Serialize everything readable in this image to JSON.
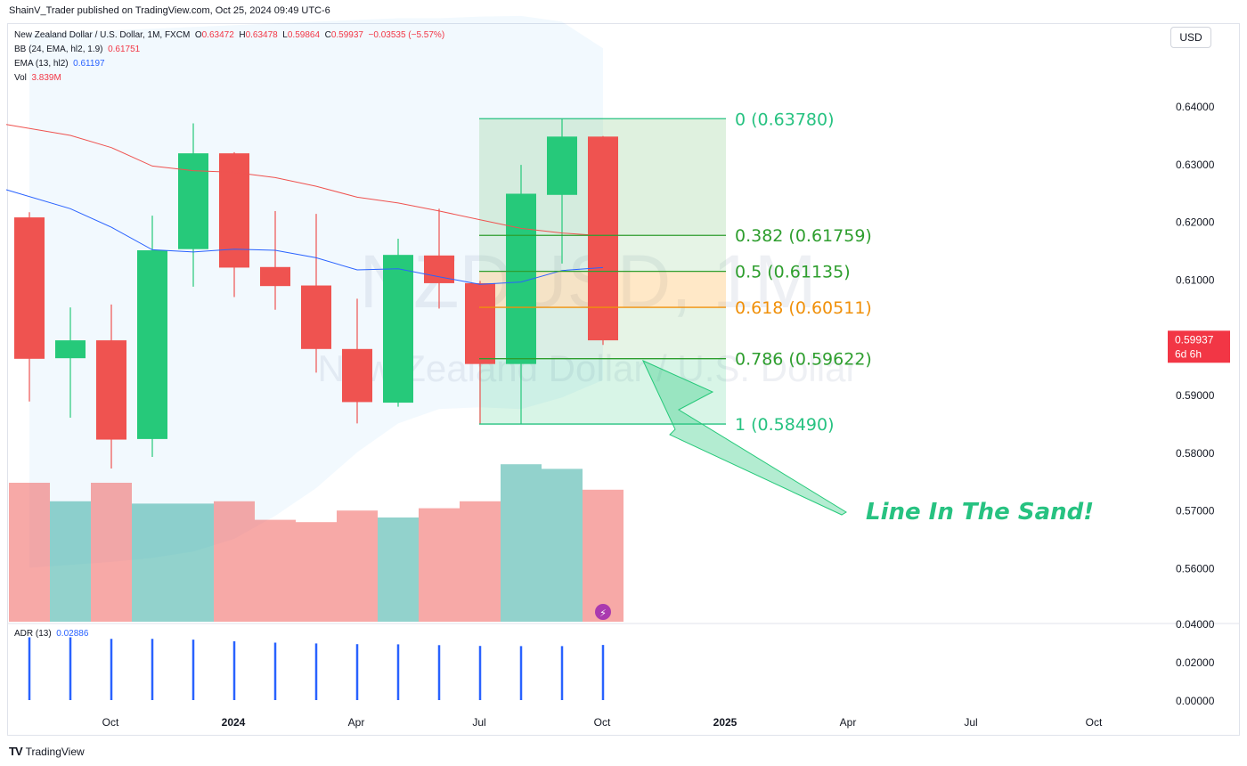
{
  "header": {
    "publish_line": "ShainV_Trader published on TradingView.com, Oct 25, 2024 09:49 UTC-6"
  },
  "legend": {
    "symbol": "New Zealand Dollar / U.S. Dollar, 1M, FXCM",
    "o_label": "O",
    "o": "0.63472",
    "h_label": "H",
    "h": "0.63478",
    "l_label": "L",
    "l": "0.59864",
    "c_label": "C",
    "c": "0.59937",
    "change": "−0.03535 (−5.57%)",
    "bb_name": "BB (24, EMA, hl2, 1.9)",
    "bb_value": "0.61751",
    "ema_name": "EMA (13, hl2)",
    "ema_value": "0.61197",
    "vol_name": "Vol",
    "vol_value": "3.839M"
  },
  "currency": "USD",
  "watermark": {
    "symbol": "NZDUSD, 1M",
    "name": "New Zealand Dollar / U.S. Dollar"
  },
  "annotation": "Line In The Sand!",
  "price_tag": {
    "price": "0.59937",
    "countdown": "6d 6h"
  },
  "adr": {
    "name": "ADR (13)",
    "value": "0.02886"
  },
  "footer": {
    "brand": "TradingView"
  },
  "colors": {
    "up": "#26c97a",
    "down": "#ef5350",
    "bb": "#ef5350",
    "ema": "#2962ff",
    "fib_green": "#2e9e2e",
    "fib_orange": "#f0900a",
    "annotation": "#27c281"
  },
  "chart_data": {
    "type": "candlestick",
    "x_ticks": [
      "Oct",
      "2024",
      "Apr",
      "Jul",
      "Oct",
      "2025",
      "Apr",
      "Jul",
      "Oct"
    ],
    "y_ticks": [
      "0.64000",
      "0.63000",
      "0.62000",
      "0.61000",
      "0.60000",
      "0.59000",
      "0.58000",
      "0.57000",
      "0.56000"
    ],
    "adr_ticks": [
      "0.04000",
      "0.02000",
      "0.00000"
    ],
    "candles": [
      {
        "o": 0.6207,
        "h": 0.6216,
        "l": 0.5888,
        "c": 0.5962
      },
      {
        "o": 0.5963,
        "h": 0.6051,
        "l": 0.586,
        "c": 0.5994
      },
      {
        "o": 0.5994,
        "h": 0.6056,
        "l": 0.5772,
        "c": 0.5822
      },
      {
        "o": 0.5823,
        "h": 0.621,
        "l": 0.5792,
        "c": 0.615
      },
      {
        "o": 0.6152,
        "h": 0.637,
        "l": 0.6087,
        "c": 0.6318
      },
      {
        "o": 0.6318,
        "h": 0.632,
        "l": 0.6069,
        "c": 0.612
      },
      {
        "o": 0.6121,
        "h": 0.6218,
        "l": 0.6047,
        "c": 0.6088
      },
      {
        "o": 0.6089,
        "h": 0.6213,
        "l": 0.5938,
        "c": 0.5979
      },
      {
        "o": 0.5979,
        "h": 0.6066,
        "l": 0.585,
        "c": 0.5887
      },
      {
        "o": 0.5886,
        "h": 0.617,
        "l": 0.5879,
        "c": 0.6142
      },
      {
        "o": 0.6141,
        "h": 0.6222,
        "l": 0.6049,
        "c": 0.6093
      },
      {
        "o": 0.6093,
        "h": 0.6097,
        "l": 0.5849,
        "c": 0.5953
      },
      {
        "o": 0.5953,
        "h": 0.6298,
        "l": 0.5849,
        "c": 0.6248
      },
      {
        "o": 0.6246,
        "h": 0.6378,
        "l": 0.6127,
        "c": 0.6347
      },
      {
        "o": 0.6347,
        "h": 0.6348,
        "l": 0.5986,
        "c": 0.5994
      }
    ],
    "volume_relative": [
      0.6,
      0.52,
      0.6,
      0.51,
      0.51,
      0.52,
      0.44,
      0.43,
      0.48,
      0.45,
      0.49,
      0.52,
      0.68,
      0.66,
      0.57
    ],
    "adr_values": [
      0.0328,
      0.0328,
      0.032,
      0.032,
      0.0316,
      0.0307,
      0.03,
      0.0296,
      0.0292,
      0.0291,
      0.0287,
      0.0283,
      0.0282,
      0.0282,
      0.0288
    ],
    "ema": [
      0.6255,
      0.6222,
      0.619,
      0.6151,
      0.6147,
      0.6152,
      0.615,
      0.6137,
      0.6116,
      0.6118,
      0.6104,
      0.6091,
      0.6095,
      0.6115,
      0.612
    ],
    "bb_basis": [
      0.6368,
      0.6349,
      0.6328,
      0.6296,
      0.6288,
      0.6285,
      0.6276,
      0.6261,
      0.6242,
      0.6232,
      0.6218,
      0.6203,
      0.6188,
      0.618,
      0.6175
    ],
    "bb_upper": [
      0.6525,
      0.6528,
      0.6531,
      0.6534,
      0.6537,
      0.654,
      0.6543,
      0.6546,
      0.6549,
      0.6552,
      0.6552,
      0.6555,
      0.6556,
      0.6546,
      0.65
    ],
    "bb_lower": [
      0.56,
      0.5605,
      0.561,
      0.5617,
      0.5628,
      0.565,
      0.569,
      0.5738,
      0.58,
      0.585,
      0.5875,
      0.5878,
      0.5875,
      0.5895,
      0.5925
    ],
    "fib": [
      {
        "level": "0",
        "price": "0.63780"
      },
      {
        "level": "0.382",
        "price": "0.61759"
      },
      {
        "level": "0.5",
        "price": "0.61135"
      },
      {
        "level": "0.618",
        "price": "0.60511"
      },
      {
        "level": "0.786",
        "price": "0.59622"
      },
      {
        "level": "1",
        "price": "0.58490"
      }
    ]
  }
}
